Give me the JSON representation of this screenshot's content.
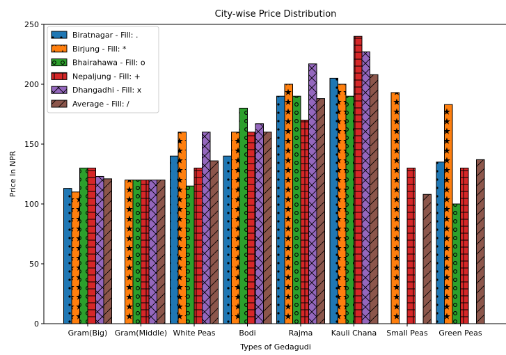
{
  "chart_data": {
    "type": "bar",
    "title": "City-wise Price Distribution",
    "xlabel": "Types of Gedagudi",
    "ylabel": "Price In NPR",
    "ylim": [
      0,
      250
    ],
    "yticks": [
      0,
      50,
      100,
      150,
      200,
      250
    ],
    "grid": false,
    "legend_position": "top-left",
    "categories": [
      "Gram(Big)",
      "Gram(Middle)",
      "White Peas",
      "Bodi",
      "Rajma",
      "Kauli Chana",
      "Small Peas",
      "Green Peas"
    ],
    "series": [
      {
        "name": "Biratnagar - Fill: .",
        "color": "#1f77b4",
        "pattern": "dot",
        "values": [
          113,
          null,
          140,
          140,
          190,
          205,
          null,
          135
        ]
      },
      {
        "name": "Birjung - Fill: *",
        "color": "#ff7f0e",
        "pattern": "star",
        "values": [
          110,
          120,
          160,
          160,
          200,
          200,
          193,
          183
        ]
      },
      {
        "name": "Bhairahawa - Fill: o",
        "color": "#2ca02c",
        "pattern": "circle",
        "values": [
          130,
          120,
          115,
          180,
          190,
          190,
          null,
          100
        ]
      },
      {
        "name": "Nepaljung - Fill: +",
        "color": "#d62728",
        "pattern": "plus",
        "values": [
          130,
          120,
          130,
          160,
          170,
          240,
          130,
          130
        ]
      },
      {
        "name": "Dhangadhi - Fill: x",
        "color": "#9467bd",
        "pattern": "cross",
        "values": [
          123,
          120,
          160,
          167,
          217,
          227,
          null,
          null
        ]
      },
      {
        "name": "Average - Fill: /",
        "color": "#8c564b",
        "pattern": "slash",
        "values": [
          121,
          120,
          136,
          160,
          188,
          208,
          108,
          137
        ]
      }
    ]
  }
}
